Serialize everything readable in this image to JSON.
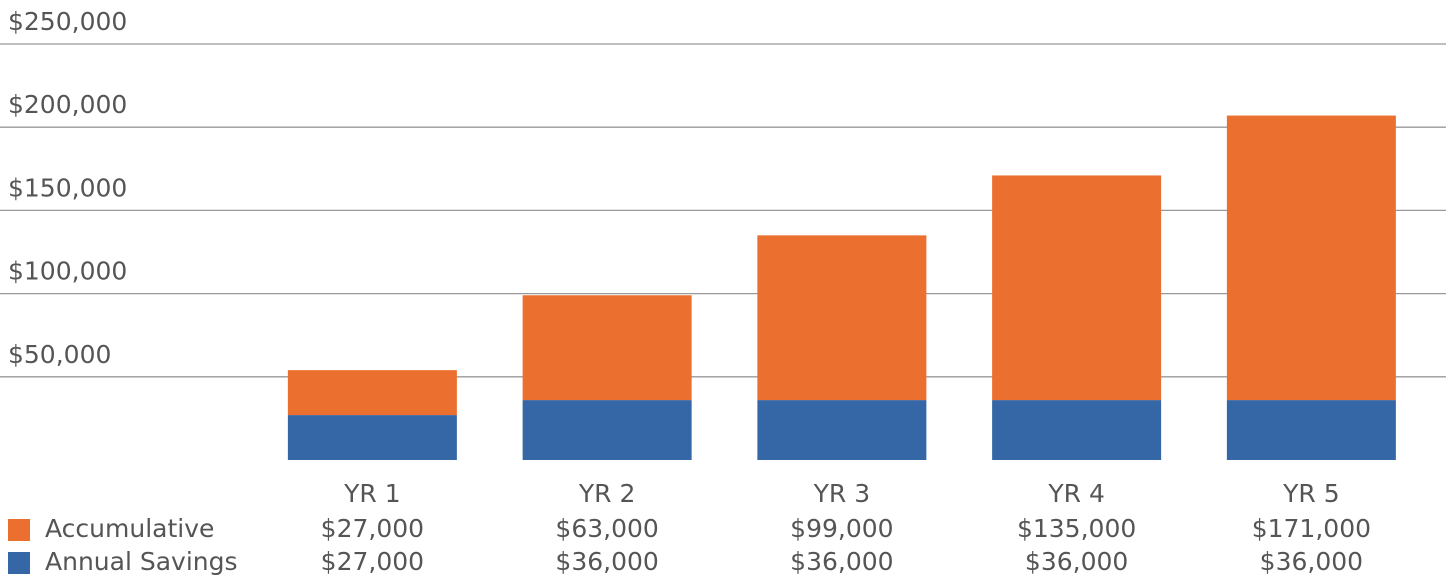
{
  "chart_data": {
    "type": "stacked_bar",
    "categories": [
      "YR 1",
      "YR 2",
      "YR 3",
      "YR 4",
      "YR 5"
    ],
    "series": [
      {
        "name": "Annual Savings",
        "color": "#3567a7",
        "values": [
          27000,
          36000,
          36000,
          36000,
          36000
        ],
        "value_labels": [
          "$27,000",
          "$36,000",
          "$36,000",
          "$36,000",
          "$36,000"
        ]
      },
      {
        "name": "Accumulative",
        "color": "#eb6f2e",
        "values": [
          27000,
          63000,
          99000,
          135000,
          171000
        ],
        "value_labels": [
          "$27,000",
          "$63,000",
          "$99,000",
          "$135,000",
          "$171,000"
        ]
      }
    ],
    "ylim": [
      0,
      250000
    ],
    "yticks": [
      {
        "value": 50000,
        "label": "$50,000"
      },
      {
        "value": 100000,
        "label": "$100,000"
      },
      {
        "value": 150000,
        "label": "$150,000"
      },
      {
        "value": 200000,
        "label": "$200,000"
      },
      {
        "value": 250000,
        "label": "$250,000"
      }
    ],
    "grid": true
  }
}
